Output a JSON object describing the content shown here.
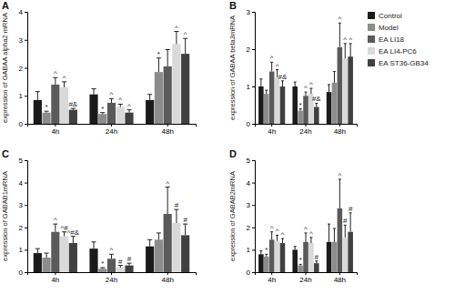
{
  "chart_data": [
    {
      "type": "bar",
      "title": "A",
      "y_label": "expression of GABAA alpha2 mRNA",
      "categories": [
        "4h",
        "24h",
        "48h"
      ],
      "ylim": [
        0,
        4
      ],
      "yticks": [
        0,
        1,
        2,
        3,
        4
      ],
      "series": [
        {
          "color": "#1a1a1a",
          "values": [
            0.85,
            1.05,
            0.85
          ],
          "errors": [
            0.3,
            0.2,
            0.2
          ],
          "annotations": [
            null,
            null,
            null
          ]
        },
        {
          "color": "#8c8c8c",
          "values": [
            0.4,
            0.35,
            1.85
          ],
          "errors": [
            0.05,
            0.05,
            0.5
          ],
          "annotations": [
            "*",
            "*",
            "*"
          ]
        },
        {
          "color": "#5a5a5a",
          "values": [
            1.4,
            0.75,
            2.05
          ],
          "errors": [
            0.25,
            0.15,
            0.6
          ],
          "annotations": [
            "^",
            "^",
            null
          ]
        },
        {
          "color": "#d9d9d9",
          "values": [
            1.3,
            0.6,
            2.85
          ],
          "errors": [
            0.2,
            0.1,
            0.45
          ],
          "annotations": [
            "^",
            "^",
            "^"
          ]
        },
        {
          "color": "#404040",
          "values": [
            0.5,
            0.4,
            2.5
          ],
          "errors": [
            0.05,
            0.1,
            0.55
          ],
          "annotations": [
            "#&",
            "^",
            "^"
          ]
        }
      ]
    },
    {
      "type": "bar",
      "title": "B",
      "y_label": "expression of GABAA beta3mRNA",
      "categories": [
        "4h",
        "24h",
        "48h"
      ],
      "ylim": [
        0,
        3
      ],
      "yticks": [
        0,
        1,
        2,
        3
      ],
      "legend": "right",
      "series": [
        {
          "name": "Control",
          "color": "#1a1a1a",
          "values": [
            1.0,
            1.0,
            0.85
          ],
          "errors": [
            0.2,
            0.12,
            0.2
          ],
          "annotations": [
            null,
            null,
            null
          ]
        },
        {
          "name": "Model",
          "color": "#8c8c8c",
          "values": [
            0.8,
            0.35,
            1.1
          ],
          "errors": [
            0.1,
            0.05,
            0.3
          ],
          "annotations": [
            null,
            "*",
            null
          ]
        },
        {
          "name": "EA LI18",
          "color": "#5a5a5a",
          "values": [
            1.4,
            0.75,
            2.05
          ],
          "errors": [
            0.25,
            0.1,
            0.65
          ],
          "annotations": [
            "^",
            "^",
            "^"
          ]
        },
        {
          "name": "EA LI4-PC6",
          "color": "#d9d9d9",
          "values": [
            1.25,
            0.8,
            1.75
          ],
          "errors": [
            0.2,
            0.15,
            0.4
          ],
          "annotations": [
            "^",
            "^",
            "^"
          ]
        },
        {
          "name": "EA ST36-GB34",
          "color": "#404040",
          "values": [
            1.0,
            0.45,
            1.8
          ],
          "errors": [
            0.15,
            0.1,
            0.35
          ],
          "annotations": [
            "#&",
            "#&",
            "^"
          ]
        }
      ]
    },
    {
      "type": "bar",
      "title": "C",
      "y_label": "expression of GABAB1mRNA",
      "categories": [
        "4h",
        "24h",
        "48h"
      ],
      "ylim": [
        0,
        5
      ],
      "yticks": [
        0,
        1,
        2,
        3,
        4,
        5
      ],
      "series": [
        {
          "color": "#1a1a1a",
          "values": [
            0.85,
            1.05,
            1.15
          ],
          "errors": [
            0.2,
            0.3,
            0.3
          ],
          "annotations": [
            null,
            null,
            null
          ]
        },
        {
          "color": "#8c8c8c",
          "values": [
            0.65,
            0.15,
            1.45
          ],
          "errors": [
            0.2,
            0.05,
            0.3
          ],
          "annotations": [
            null,
            "*",
            null
          ]
        },
        {
          "color": "#5a5a5a",
          "values": [
            1.8,
            0.6,
            2.6
          ],
          "errors": [
            0.35,
            0.2,
            1.2
          ],
          "annotations": [
            "^",
            "^",
            "^"
          ]
        },
        {
          "color": "#d9d9d9",
          "values": [
            1.6,
            0.2,
            2.2
          ],
          "errors": [
            0.2,
            0.1,
            0.6
          ],
          "annotations": [
            "^#",
            "#",
            "#"
          ]
        },
        {
          "color": "#404040",
          "values": [
            1.3,
            0.3,
            1.65
          ],
          "errors": [
            0.3,
            0.1,
            0.5
          ],
          "annotations": [
            "^#&",
            "#",
            "#"
          ]
        }
      ]
    },
    {
      "type": "bar",
      "title": "D",
      "y_label": "expression of GABAB2mRNA",
      "categories": [
        "4h",
        "24h",
        "48h"
      ],
      "ylim": [
        0,
        5
      ],
      "yticks": [
        0,
        1,
        2,
        3,
        4,
        5
      ],
      "series": [
        {
          "color": "#1a1a1a",
          "values": [
            0.8,
            1.0,
            1.35
          ],
          "errors": [
            0.15,
            0.15,
            0.8
          ],
          "annotations": [
            null,
            null,
            null
          ]
        },
        {
          "color": "#8c8c8c",
          "values": [
            0.7,
            0.3,
            1.35
          ],
          "errors": [
            0.1,
            0.05,
            0.6
          ],
          "annotations": [
            "*",
            "*",
            null
          ]
        },
        {
          "color": "#5a5a5a",
          "values": [
            1.45,
            1.35,
            2.85
          ],
          "errors": [
            0.35,
            0.4,
            1.3
          ],
          "annotations": [
            "^",
            "^",
            "^"
          ]
        },
        {
          "color": "#d9d9d9",
          "values": [
            1.4,
            1.3,
            1.55
          ],
          "errors": [
            0.25,
            0.25,
            0.55
          ],
          "annotations": [
            "^",
            "^",
            "#"
          ]
        },
        {
          "color": "#404040",
          "values": [
            1.3,
            0.4,
            1.8
          ],
          "errors": [
            0.2,
            0.1,
            0.85
          ],
          "annotations": [
            "^",
            "#",
            "#"
          ]
        }
      ]
    }
  ]
}
